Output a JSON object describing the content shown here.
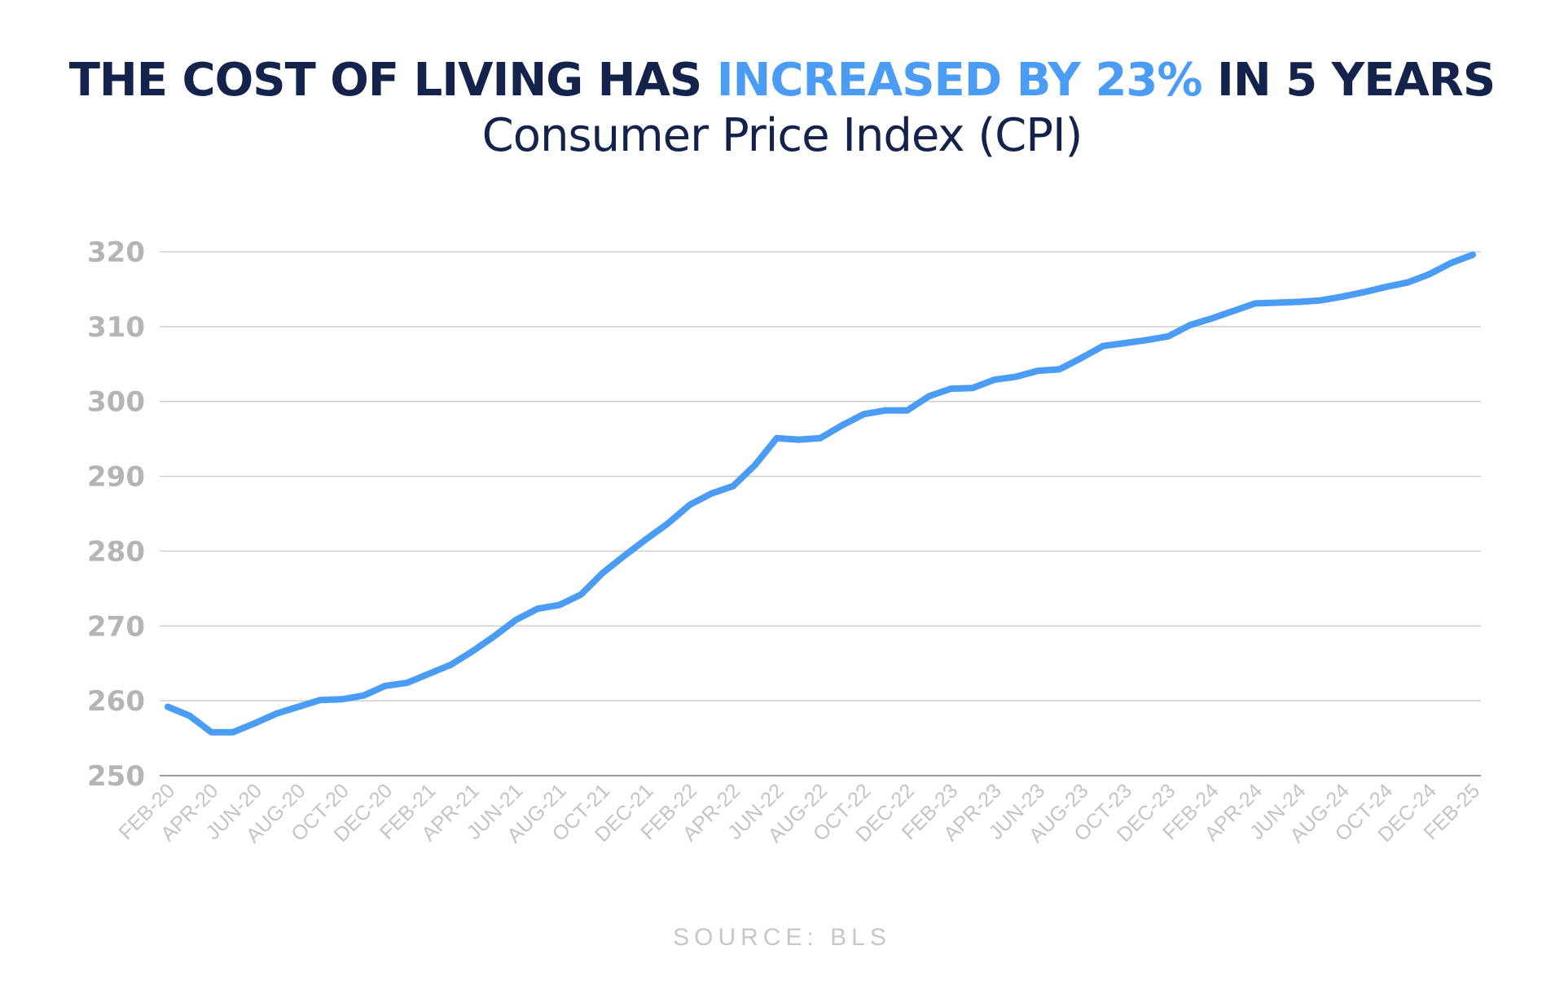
{
  "title": {
    "part1": "THE COST OF LIVING HAS ",
    "highlight": "INCREASED BY 23%",
    "part2": " IN 5 YEARS",
    "subtitle": "Consumer Price Index (CPI)"
  },
  "source": "SOURCE: BLS",
  "colors": {
    "title": "#14234b",
    "accent": "#4a9cf5",
    "axis_text": "#b5b5b5",
    "grid": "#cfcfcf",
    "source": "#c7c7c7"
  },
  "chart_data": {
    "type": "line",
    "title": "THE COST OF LIVING HAS INCREASED BY 23% IN 5 YEARS",
    "subtitle": "Consumer Price Index (CPI)",
    "xlabel": "",
    "ylabel": "",
    "ylim": [
      250,
      320
    ],
    "yticks": [
      320,
      310,
      300,
      290,
      280,
      270,
      260,
      250
    ],
    "grid": true,
    "x_tick_labels": [
      "FEB-20",
      "APR-20",
      "JUN-20",
      "AUG-20",
      "OCT-20",
      "DEC-20",
      "FEB-21",
      "APR-21",
      "JUN-21",
      "AUG-21",
      "OCT-21",
      "DEC-21",
      "FEB-22",
      "APR-22",
      "JUN-22",
      "AUG-22",
      "OCT-22",
      "DEC-22",
      "FEB-23",
      "APR-23",
      "JUN-23",
      "AUG-23",
      "OCT-23",
      "DEC-23",
      "FEB-24",
      "APR-24",
      "JUN-24",
      "AUG-24",
      "OCT-24",
      "DEC-24",
      "FEB-25"
    ],
    "series": [
      {
        "color": "#4a9cf5",
        "x": [
          "FEB-20",
          "MAR-20",
          "APR-20",
          "MAY-20",
          "JUN-20",
          "JUL-20",
          "AUG-20",
          "SEP-20",
          "OCT-20",
          "NOV-20",
          "DEC-20",
          "JAN-21",
          "FEB-21",
          "MAR-21",
          "APR-21",
          "MAY-21",
          "JUN-21",
          "JUL-21",
          "AUG-21",
          "SEP-21",
          "OCT-21",
          "NOV-21",
          "DEC-21",
          "JAN-22",
          "FEB-22",
          "MAR-22",
          "APR-22",
          "MAY-22",
          "JUN-22",
          "JUL-22",
          "AUG-22",
          "SEP-22",
          "OCT-22",
          "NOV-22",
          "DEC-22",
          "JAN-23",
          "FEB-23",
          "MAR-23",
          "APR-23",
          "MAY-23",
          "JUN-23",
          "JUL-23",
          "AUG-23",
          "SEP-23",
          "OCT-23",
          "NOV-23",
          "DEC-23",
          "JAN-24",
          "FEB-24",
          "MAR-24",
          "APR-24",
          "MAY-24",
          "JUN-24",
          "JUL-24",
          "AUG-24",
          "SEP-24",
          "OCT-24",
          "NOV-24",
          "DEC-24",
          "JAN-25",
          "FEB-25"
        ],
        "values": [
          259.2,
          258.0,
          255.8,
          255.8,
          257.0,
          258.3,
          259.2,
          260.1,
          260.2,
          260.7,
          262.0,
          262.4,
          263.6,
          264.8,
          266.6,
          268.6,
          270.8,
          272.3,
          272.8,
          274.2,
          277.1,
          279.4,
          281.6,
          283.7,
          286.2,
          287.7,
          288.7,
          291.5,
          295.1,
          294.9,
          295.1,
          296.8,
          298.3,
          298.8,
          298.8,
          300.7,
          301.7,
          301.8,
          302.9,
          303.3,
          304.1,
          304.3,
          305.8,
          307.4,
          307.8,
          308.2,
          308.7,
          310.2,
          311.1,
          312.1,
          313.1,
          313.2,
          313.3,
          313.5,
          314.0,
          314.6,
          315.3,
          315.9,
          317.0,
          318.5,
          319.6
        ]
      }
    ]
  }
}
